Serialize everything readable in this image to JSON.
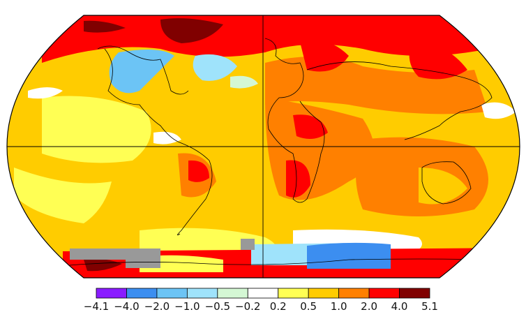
{
  "map": {
    "projection": "robinson-like",
    "gridlines": [
      "equator",
      "prime-meridian"
    ],
    "missing_data_color": "#999999"
  },
  "legend": {
    "bins": [
      {
        "color": "#8a1cff"
      },
      {
        "color": "#3c8ef0"
      },
      {
        "color": "#6cc4f5"
      },
      {
        "color": "#9fe3fb"
      },
      {
        "color": "#d4f7d4"
      },
      {
        "color": "#ffffff"
      },
      {
        "color": "#ffff54"
      },
      {
        "color": "#ffcc00"
      },
      {
        "color": "#ff8000"
      },
      {
        "color": "#ff0000"
      },
      {
        "color": "#800000"
      }
    ],
    "tick_labels": [
      "−4.1",
      "−4.0",
      "−2.0",
      "−1.0",
      "−0.5",
      "−0.2",
      "0.2",
      "0.5",
      "1.0",
      "2.0",
      "4.0",
      "5.1"
    ]
  }
}
